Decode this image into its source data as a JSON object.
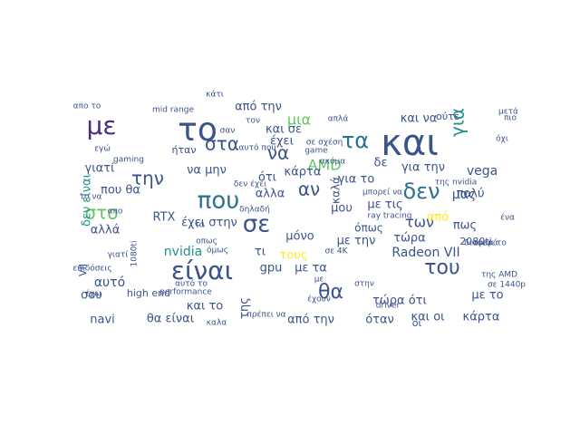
{
  "wordcloud": {
    "words": [
      {
        "text": "και",
        "color": "#3b528b"
      },
      {
        "text": "το",
        "color": "#3b528b"
      },
      {
        "text": "με",
        "color": "#472d7b"
      },
      {
        "text": "είναι",
        "color": "#3b528b"
      },
      {
        "text": "που",
        "color": "#2c728e"
      },
      {
        "text": "σε",
        "color": "#3b528b"
      },
      {
        "text": "για",
        "color": "#21918c"
      },
      {
        "text": "τα",
        "color": "#2c728e"
      },
      {
        "text": "δεν",
        "color": "#2c728e"
      },
      {
        "text": "θα",
        "color": "#3b528b"
      },
      {
        "text": "στα",
        "color": "#3b528b"
      },
      {
        "text": "την",
        "color": "#3b528b"
      },
      {
        "text": "στο",
        "color": "#5ec962"
      },
      {
        "text": "να",
        "color": "#3b528b"
      },
      {
        "text": "αν",
        "color": "#3b528b"
      },
      {
        "text": "του",
        "color": "#3b528b"
      },
      {
        "text": "μια",
        "color": "#5ec962"
      },
      {
        "text": "των",
        "color": "#3b528b"
      },
      {
        "text": "AMD",
        "color": "#5ec962"
      },
      {
        "text": "Radeon VII",
        "color": "#3b528b"
      },
      {
        "text": "nvidia",
        "color": "#21918c"
      },
      {
        "text": "αυτό",
        "color": "#3b528b"
      },
      {
        "text": "μας",
        "color": "#3b528b"
      },
      {
        "text": "καλά",
        "color": "#3b528b"
      },
      {
        "text": "vega",
        "color": "#3b528b"
      },
      {
        "text": "από την",
        "color": "#3b528b"
      },
      {
        "text": "και να",
        "color": "#3b528b"
      },
      {
        "text": "και σε",
        "color": "#3b528b"
      },
      {
        "text": "έχει",
        "color": "#3b528b"
      },
      {
        "text": "για την",
        "color": "#3b528b"
      },
      {
        "text": "γιατί",
        "color": "#3b528b"
      },
      {
        "text": "να μην",
        "color": "#3b528b"
      },
      {
        "text": "κάρτα",
        "color": "#3b528b"
      },
      {
        "text": "ότι",
        "color": "#3b528b"
      },
      {
        "text": "για το",
        "color": "#3b528b"
      },
      {
        "text": "πολύ",
        "color": "#3b528b"
      },
      {
        "text": "μου",
        "color": "#3b528b"
      },
      {
        "text": "με τις",
        "color": "#3b528b"
      },
      {
        "text": "από",
        "color": "#fde725"
      },
      {
        "text": "πως",
        "color": "#3b528b"
      },
      {
        "text": "αλλά",
        "color": "#3b528b"
      },
      {
        "text": "έχει στην",
        "color": "#3b528b"
      },
      {
        "text": "μόνο",
        "color": "#3b528b"
      },
      {
        "text": "με την",
        "color": "#3b528b"
      },
      {
        "text": "τώρα",
        "color": "#3b528b"
      },
      {
        "text": "τι",
        "color": "#3b528b"
      },
      {
        "text": "gpu",
        "color": "#3b528b"
      },
      {
        "text": "με τα",
        "color": "#3b528b"
      },
      {
        "text": "τους",
        "color": "#fde725"
      },
      {
        "text": "σου",
        "color": "#3b528b"
      },
      {
        "text": "high end",
        "color": "#3b528b"
      },
      {
        "text": "και το",
        "color": "#3b528b"
      },
      {
        "text": "της",
        "color": "#3b528b"
      },
      {
        "text": "από την",
        "color": "#3b528b"
      },
      {
        "text": "όταν",
        "color": "#3b528b"
      },
      {
        "text": "και οι",
        "color": "#3b528b"
      },
      {
        "text": "κάρτα",
        "color": "#3b528b"
      },
      {
        "text": "navi",
        "color": "#3b528b"
      },
      {
        "text": "θα είναι",
        "color": "#3b528b"
      },
      {
        "text": "τώρα ότι",
        "color": "#3b528b"
      },
      {
        "text": "με το",
        "color": "#3b528b"
      },
      {
        "text": "RTX",
        "color": "#3b528b"
      },
      {
        "text": "VII",
        "color": "#3b528b"
      },
      {
        "text": "mid range",
        "color": "#3b528b"
      },
      {
        "text": "ήταν",
        "color": "#3b528b"
      },
      {
        "text": "όπως",
        "color": "#3b528b"
      },
      {
        "text": "οπως",
        "color": "#3b528b"
      },
      {
        "text": "2080ti",
        "color": "#3b528b"
      },
      {
        "text": "ένα",
        "color": "#3b528b"
      },
      {
        "text": "μπορεί να",
        "color": "#3b528b"
      },
      {
        "text": "δηλαδή",
        "color": "#3b528b"
      },
      {
        "text": "γιατί",
        "color": "#3b528b"
      },
      {
        "text": "δεν είναι",
        "color": "#21918c"
      },
      {
        "text": "που θα",
        "color": "#3b528b"
      },
      {
        "text": "αλλα",
        "color": "#3b528b"
      },
      {
        "text": "ray tracing",
        "color": "#3b528b"
      },
      {
        "text": "όμως",
        "color": "#3b528b"
      },
      {
        "text": "τα",
        "color": "#3b528b"
      },
      {
        "text": "performance",
        "color": "#3b528b"
      },
      {
        "text": "game",
        "color": "#3b528b"
      },
      {
        "text": "δε",
        "color": "#3b528b"
      },
      {
        "text": "σε 4K",
        "color": "#3b528b"
      },
      {
        "text": "εγώ",
        "color": "#3b528b"
      },
      {
        "text": "ούτε",
        "color": "#3b528b"
      },
      {
        "text": "καλα",
        "color": "#3b528b"
      },
      {
        "text": "οι",
        "color": "#3b528b"
      },
      {
        "text": "με",
        "color": "#3b528b"
      },
      {
        "text": "ακόμα",
        "color": "#3b528b"
      },
      {
        "text": "απλά",
        "color": "#3b528b"
      },
      {
        "text": "όχι",
        "color": "#3b528b"
      },
      {
        "text": "1080ti",
        "color": "#3b528b"
      },
      {
        "text": "απο το",
        "color": "#3b528b"
      },
      {
        "text": "αυτό το",
        "color": "#3b528b"
      },
      {
        "text": "επιδόσεις",
        "color": "#3b528b"
      },
      {
        "text": "έχουν",
        "color": "#3b528b"
      },
      {
        "text": "πρέπει να",
        "color": "#3b528b"
      },
      {
        "text": "στην",
        "color": "#3b528b"
      },
      {
        "text": "διαφορά",
        "color": "#3b528b"
      },
      {
        "text": "είναι το",
        "color": "#3b528b"
      },
      {
        "text": "της AMD",
        "color": "#3b528b"
      },
      {
        "text": "σε 1440p",
        "color": "#3b528b"
      },
      {
        "text": "gaming",
        "color": "#3b528b"
      },
      {
        "text": "έχω",
        "color": "#3b528b"
      },
      {
        "text": "το να",
        "color": "#3b528b"
      },
      {
        "text": "αυτό που",
        "color": "#3b528b"
      },
      {
        "text": "απο",
        "color": "#3b528b"
      },
      {
        "text": "driver",
        "color": "#3b528b"
      },
      {
        "text": "κάτι",
        "color": "#3b528b"
      },
      {
        "text": "τον",
        "color": "#3b528b"
      },
      {
        "text": "σαν",
        "color": "#3b528b"
      },
      {
        "text": "της nvidia",
        "color": "#3b528b"
      },
      {
        "text": "μετά",
        "color": "#3b528b"
      },
      {
        "text": "πιο",
        "color": "#3b528b"
      },
      {
        "text": "σε σχέση",
        "color": "#3b528b"
      },
      {
        "text": "δεν έχει",
        "color": "#3b528b"
      }
    ]
  }
}
